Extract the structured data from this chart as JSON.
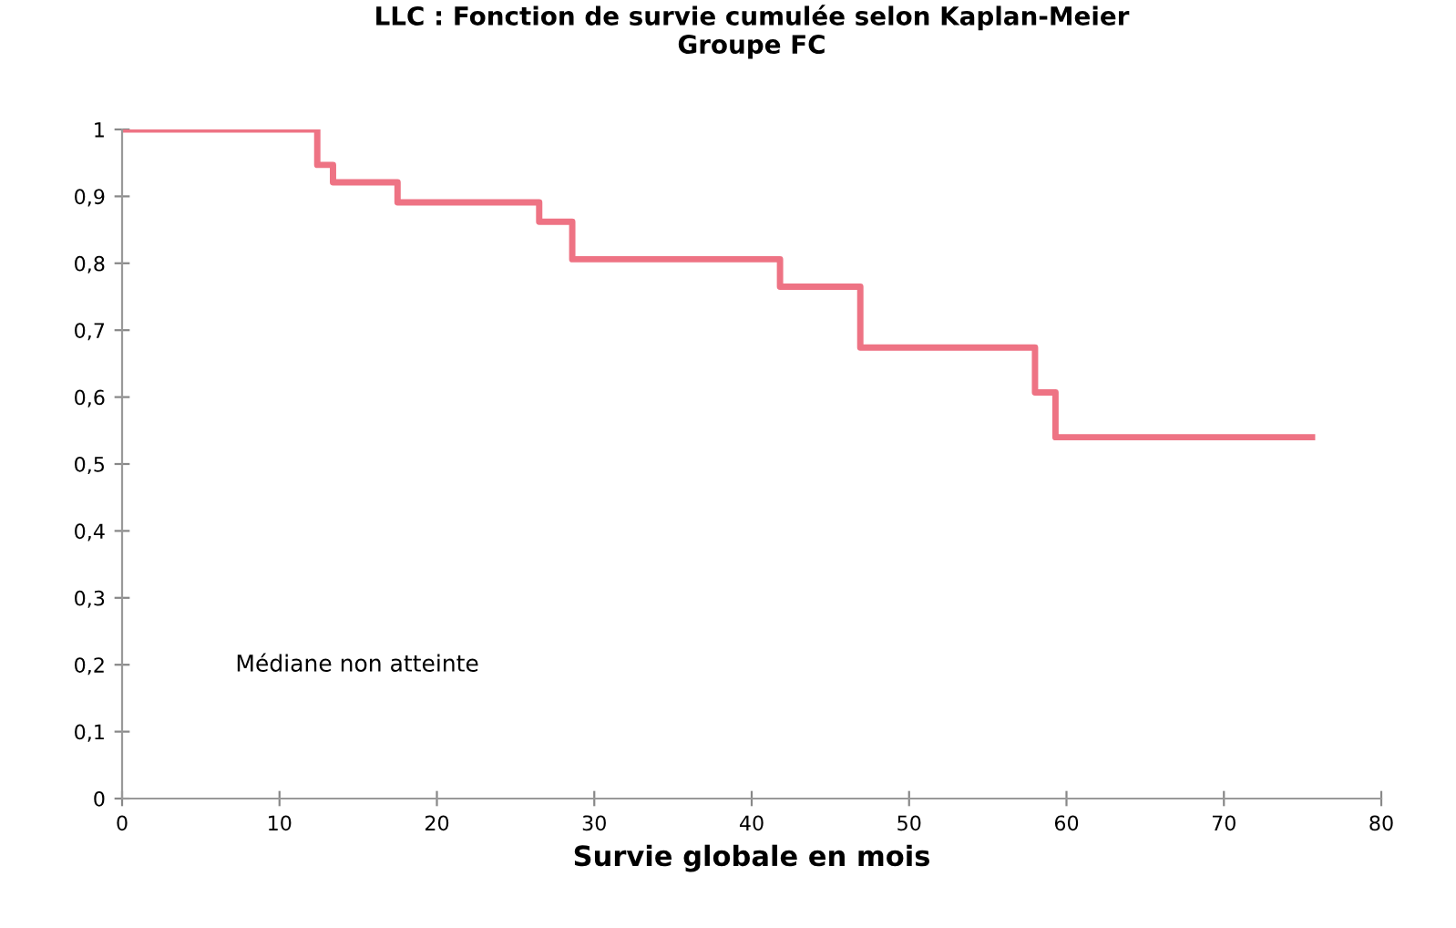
{
  "chart_data": {
    "type": "step",
    "title": "LLC : Fonction de survie cumulée selon Kaplan-Meier\nGroupe FC",
    "xlabel": "Survie globale en mois",
    "x": [
      0,
      12.4,
      13.4,
      17.5,
      26.5,
      28.6,
      41.8,
      46.9,
      58.0,
      59.3,
      75.6
    ],
    "series": [
      {
        "color": "#ee7384",
        "values": [
          1,
          0.947,
          0.921,
          0.891,
          0.862,
          0.806,
          0.765,
          0.674,
          0.607,
          0.54,
          0.54
        ]
      }
    ],
    "xlim": [
      0,
      80
    ],
    "xticks": [
      0,
      10,
      20,
      30,
      40,
      50,
      60,
      70,
      80
    ],
    "ylim": [
      0,
      1
    ],
    "yticks": [
      0,
      {
        "value": 0.1,
        "label": "0,1"
      },
      {
        "value": 0.2,
        "label": "0,2"
      },
      {
        "value": 0.3,
        "label": "0,3"
      },
      {
        "value": 0.4,
        "label": "0,4"
      },
      {
        "value": 0.5,
        "label": "0,5"
      },
      {
        "value": 0.6,
        "label": "0,6"
      },
      {
        "value": 0.7,
        "label": "0,7"
      },
      {
        "value": 0.8,
        "label": "0,8"
      },
      {
        "value": 0.9,
        "label": "0,9"
      },
      1
    ],
    "annotations": [
      "Médiane non atteinte"
    ],
    "grid": false,
    "legend": false
  }
}
